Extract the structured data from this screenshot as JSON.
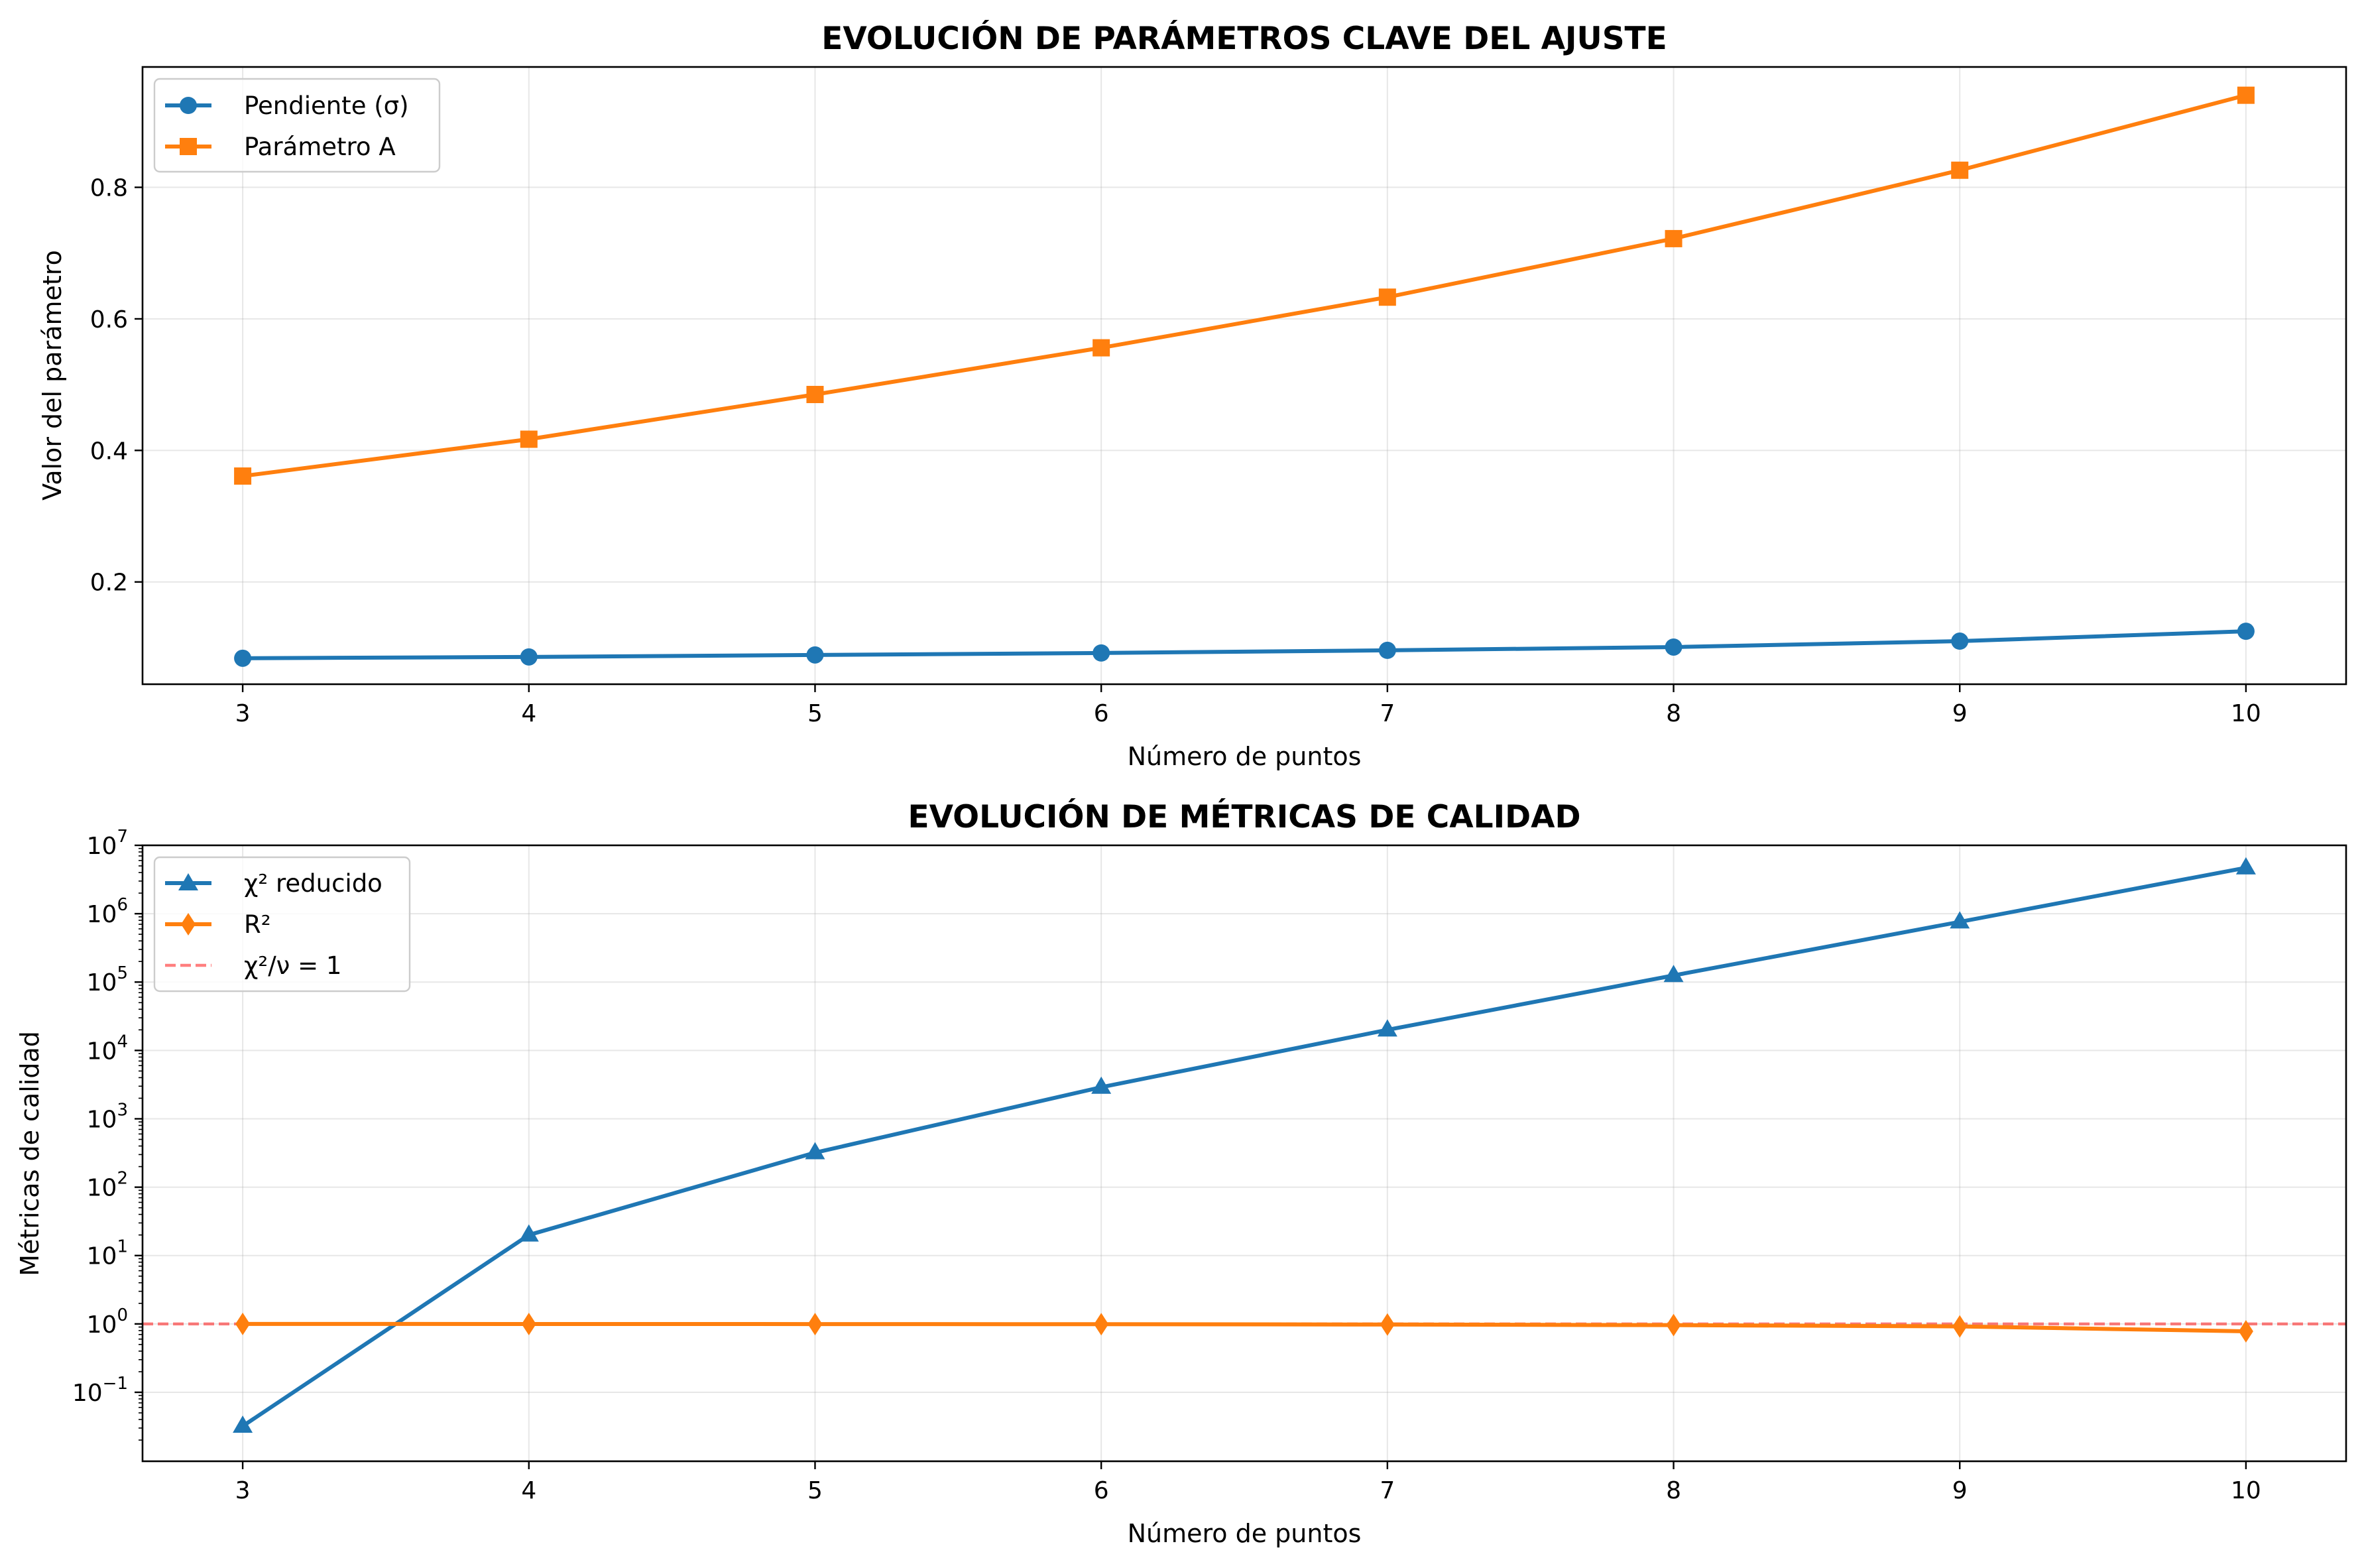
{
  "chart_data": [
    {
      "type": "line",
      "title": "EVOLUCIÓN DE PARÁMETROS CLAVE DEL AJUSTE",
      "xlabel": "Número de puntos",
      "ylabel": "Valor del parámetro",
      "x": [
        3,
        4,
        5,
        6,
        7,
        8,
        9,
        10
      ],
      "xlim": [
        2.65,
        10.35
      ],
      "ylim": [
        0.0445,
        0.983
      ],
      "yscale": "linear",
      "xticks": [
        3,
        4,
        5,
        6,
        7,
        8,
        9,
        10
      ],
      "yticks": [
        {
          "value": 0.2,
          "label": "0.2"
        },
        {
          "value": 0.4,
          "label": "0.4"
        },
        {
          "value": 0.6,
          "label": "0.6"
        },
        {
          "value": 0.8,
          "label": "0.8"
        }
      ],
      "grid": true,
      "legend_position": "upper-left",
      "series": [
        {
          "name": "Pendiente (σ)",
          "color": "#1f77b4",
          "marker": "circle",
          "values": [
            0.084,
            0.086,
            0.089,
            0.092,
            0.096,
            0.101,
            0.11,
            0.125
          ]
        },
        {
          "name": "Parámetro A",
          "color": "#ff7f0e",
          "marker": "square",
          "values": [
            0.361,
            0.417,
            0.485,
            0.556,
            0.633,
            0.722,
            0.826,
            0.94
          ]
        }
      ]
    },
    {
      "type": "line",
      "title": "EVOLUCIÓN DE MÉTRICAS DE CALIDAD",
      "xlabel": "Número de puntos",
      "ylabel": "Métricas de calidad",
      "x": [
        3,
        4,
        5,
        6,
        7,
        8,
        9,
        10
      ],
      "xlim": [
        2.65,
        10.35
      ],
      "ylim": [
        0.0098,
        10000000
      ],
      "yscale": "log",
      "xticks": [
        3,
        4,
        5,
        6,
        7,
        8,
        9,
        10
      ],
      "yticks": [
        {
          "value": 0.1,
          "base": "10",
          "exp": "−1"
        },
        {
          "value": 1,
          "base": "10",
          "exp": "0"
        },
        {
          "value": 10,
          "base": "10",
          "exp": "1"
        },
        {
          "value": 100,
          "base": "10",
          "exp": "2"
        },
        {
          "value": 1000,
          "base": "10",
          "exp": "3"
        },
        {
          "value": 10000,
          "base": "10",
          "exp": "4"
        },
        {
          "value": 100000,
          "base": "10",
          "exp": "5"
        },
        {
          "value": 1000000,
          "base": "10",
          "exp": "6"
        },
        {
          "value": 10000000,
          "base": "10",
          "exp": "7"
        }
      ],
      "grid": true,
      "legend_position": "upper-left",
      "series": [
        {
          "name": "χ² reducido",
          "color": "#1f77b4",
          "marker": "triangle",
          "values": [
            0.032,
            20,
            320,
            2900,
            20000,
            125000,
            760000,
            4700000
          ]
        },
        {
          "name": "R²",
          "color": "#ff7f0e",
          "marker": "diamond",
          "values": [
            0.999,
            0.998,
            0.995,
            0.99,
            0.98,
            0.96,
            0.92,
            0.78
          ]
        }
      ],
      "reference_lines": [
        {
          "name": "χ²/ν = 1",
          "y": 1,
          "color": "#ff0000",
          "style": "dashed",
          "opacity": 0.5
        }
      ]
    }
  ]
}
